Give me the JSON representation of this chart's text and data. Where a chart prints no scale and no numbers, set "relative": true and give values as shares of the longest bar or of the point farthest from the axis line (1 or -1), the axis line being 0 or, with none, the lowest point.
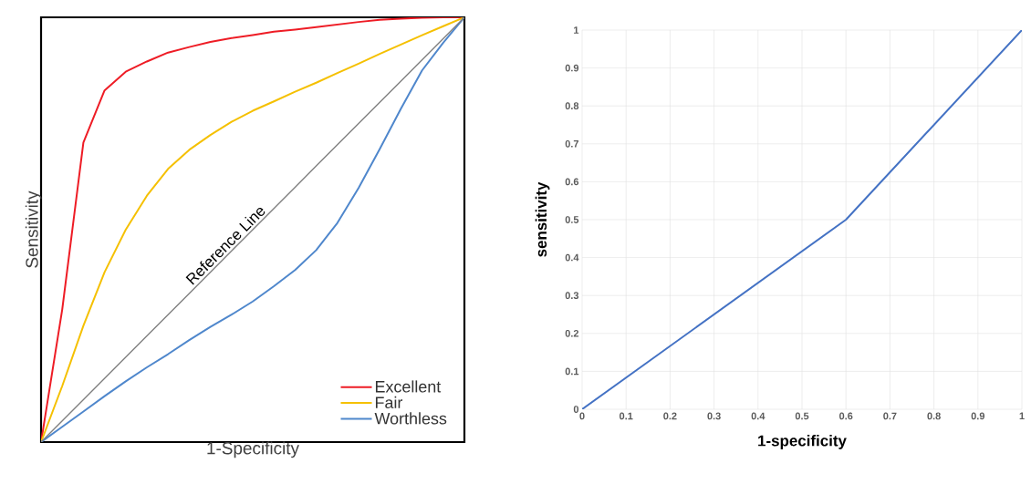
{
  "chart_data": [
    {
      "type": "line",
      "relative": true,
      "xlabel": "1-Specificity",
      "ylabel": "Sensitivity",
      "legend": "bottom right",
      "categories": [
        null,
        null,
        null,
        null,
        null,
        null,
        null,
        null,
        null,
        null,
        null,
        null,
        null,
        null,
        null,
        null,
        null,
        null,
        null,
        null,
        null
      ],
      "series": [
        {
          "name": "Excellent",
          "color": "#ee1c25",
          "values": [
            0,
            0.312,
            0.705,
            0.828,
            0.872,
            0.896,
            0.917,
            0.93,
            0.942,
            0.951,
            0.958,
            0.966,
            0.971,
            0.977,
            0.983,
            0.989,
            0.994,
            0.997,
            0.999,
            1,
            1
          ]
        },
        {
          "name": "Fair",
          "color": "#f5c000",
          "values": [
            0,
            0.132,
            0.274,
            0.4,
            0.5,
            0.58,
            0.643,
            0.688,
            0.723,
            0.754,
            0.78,
            0.802,
            0.825,
            0.846,
            0.869,
            0.891,
            0.914,
            0.936,
            0.958,
            0.979,
            1
          ]
        },
        {
          "name": "Worthless",
          "color": "#4f87cc",
          "values": [
            0,
            0.036,
            0.072,
            0.108,
            0.143,
            0.176,
            0.207,
            0.24,
            0.271,
            0.3,
            0.331,
            0.367,
            0.405,
            0.452,
            0.516,
            0.598,
            0.69,
            0.785,
            0.875,
            0.94,
            1
          ]
        },
        {
          "name": "Reference Line",
          "color": "#808080",
          "values": [
            0,
            0.05,
            0.1,
            0.15,
            0.2,
            0.25,
            0.3,
            0.35,
            0.4,
            0.45,
            0.5,
            0.55,
            0.6,
            0.65,
            0.7,
            0.75,
            0.8,
            0.85,
            0.9,
            0.95,
            1
          ]
        }
      ]
    },
    {
      "type": "line",
      "xlabel": "1-specificity",
      "ylabel": "sensitivity",
      "grid": true,
      "xlim": [
        0,
        1
      ],
      "ylim": [
        0,
        1
      ],
      "xticks": [
        0,
        0.1,
        0.2,
        0.3,
        0.4,
        0.5,
        0.6,
        0.7,
        0.8,
        0.9,
        1
      ],
      "yticks": [
        0,
        0.1,
        0.2,
        0.3,
        0.4,
        0.5,
        0.6,
        0.7,
        0.8,
        0.9,
        1
      ],
      "series": [
        {
          "color": "#4472c4",
          "x": [
            0,
            0.6,
            1
          ],
          "values": [
            0,
            0.5,
            1
          ]
        }
      ]
    }
  ]
}
